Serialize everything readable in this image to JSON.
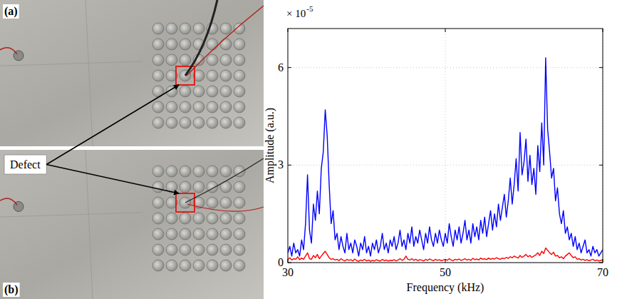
{
  "figure_panels": {
    "labels": [
      "(a)",
      "(b)"
    ],
    "callout": "Defect"
  },
  "chart_data": {
    "type": "line",
    "x_label": "Frequency (kHz)",
    "y_label": "Amplitude (a.u.)",
    "annotations": [
      "× 10",
      "-5"
    ],
    "x": [
      30,
      30.25,
      30.5,
      30.75,
      31,
      31.25,
      31.5,
      31.75,
      32,
      32.25,
      32.5,
      32.75,
      33,
      33.25,
      33.5,
      33.75,
      34,
      34.25,
      34.5,
      34.75,
      35,
      35.25,
      35.5,
      35.75,
      36,
      36.25,
      36.5,
      36.75,
      37,
      37.25,
      37.5,
      37.75,
      38,
      38.25,
      38.5,
      38.75,
      39,
      39.25,
      39.5,
      39.75,
      40,
      40.25,
      40.5,
      40.75,
      41,
      41.25,
      41.5,
      41.75,
      42,
      42.25,
      42.5,
      42.75,
      43,
      43.25,
      43.5,
      43.75,
      44,
      44.25,
      44.5,
      44.75,
      45,
      45.25,
      45.5,
      45.75,
      46,
      46.25,
      46.5,
      46.75,
      47,
      47.25,
      47.5,
      47.75,
      48,
      48.25,
      48.5,
      48.75,
      49,
      49.25,
      49.5,
      49.75,
      50,
      50.25,
      50.5,
      50.75,
      51,
      51.25,
      51.5,
      51.75,
      52,
      52.25,
      52.5,
      52.75,
      53,
      53.25,
      53.5,
      53.75,
      54,
      54.25,
      54.5,
      54.75,
      55,
      55.25,
      55.5,
      55.75,
      56,
      56.25,
      56.5,
      56.75,
      57,
      57.25,
      57.5,
      57.75,
      58,
      58.25,
      58.5,
      58.75,
      59,
      59.25,
      59.5,
      59.75,
      60,
      60.25,
      60.5,
      60.75,
      61,
      61.25,
      61.5,
      61.75,
      62,
      62.25,
      62.5,
      62.75,
      63,
      63.25,
      63.5,
      63.75,
      64,
      64.25,
      64.5,
      64.75,
      65,
      65.25,
      65.5,
      65.75,
      66,
      66.25,
      66.5,
      66.75,
      67,
      67.25,
      67.5,
      67.75,
      68,
      68.25,
      68.5,
      68.75,
      69,
      69.25,
      69.5,
      69.75,
      70
    ],
    "series": [
      {
        "color": "#0000ff",
        "values": [
          0.3,
          0.5,
          0.2,
          0.6,
          0.3,
          0.4,
          0.2,
          0.7,
          0.4,
          1.2,
          2.7,
          1.0,
          0.6,
          1.8,
          1.3,
          2.2,
          1.5,
          2.9,
          3.4,
          4.7,
          3.9,
          2.4,
          1.2,
          1.6,
          0.7,
          0.9,
          0.4,
          0.8,
          0.5,
          0.3,
          0.9,
          0.4,
          0.6,
          0.3,
          0.7,
          0.5,
          0.2,
          0.6,
          0.4,
          0.8,
          0.3,
          0.5,
          0.2,
          0.6,
          0.4,
          0.7,
          0.3,
          0.5,
          0.9,
          0.4,
          0.6,
          0.3,
          0.7,
          0.5,
          0.8,
          0.4,
          0.6,
          1.0,
          0.5,
          0.7,
          0.4,
          0.9,
          0.6,
          1.1,
          0.5,
          0.8,
          0.6,
          1.0,
          0.7,
          0.4,
          0.9,
          0.6,
          1.1,
          0.7,
          0.5,
          0.9,
          0.6,
          1.0,
          0.7,
          0.5,
          0.9,
          0.6,
          1.2,
          0.8,
          0.5,
          1.0,
          0.7,
          1.1,
          0.6,
          0.9,
          1.3,
          0.7,
          1.0,
          0.6,
          1.2,
          0.8,
          1.1,
          0.7,
          1.3,
          0.9,
          1.4,
          0.8,
          1.2,
          1.6,
          1.0,
          1.5,
          1.1,
          1.8,
          1.3,
          1.7,
          2.1,
          1.4,
          1.9,
          2.6,
          1.8,
          2.4,
          3.2,
          2.2,
          4.0,
          2.7,
          3.1,
          3.8,
          2.5,
          3.3,
          2.4,
          2.9,
          2.1,
          3.6,
          2.8,
          4.3,
          3.0,
          6.3,
          4.1,
          3.4,
          2.6,
          2.9,
          1.9,
          2.3,
          1.5,
          1.2,
          1.6,
          0.9,
          1.1,
          0.7,
          0.9,
          0.5,
          0.8,
          0.4,
          0.6,
          0.3,
          0.5,
          0.7,
          0.3,
          0.4,
          0.2,
          0.5,
          0.3,
          0.4,
          0.2,
          0.3,
          0.4
        ]
      },
      {
        "color": "#ff0000",
        "values": [
          0.1,
          0.15,
          0.08,
          0.12,
          0.1,
          0.18,
          0.09,
          0.14,
          0.1,
          0.2,
          0.3,
          0.12,
          0.1,
          0.22,
          0.15,
          0.25,
          0.12,
          0.2,
          0.28,
          0.35,
          0.25,
          0.15,
          0.1,
          0.12,
          0.08,
          0.1,
          0.06,
          0.12,
          0.08,
          0.05,
          0.1,
          0.07,
          0.09,
          0.05,
          0.11,
          0.06,
          0.04,
          0.08,
          0.06,
          0.1,
          0.05,
          0.08,
          0.04,
          0.07,
          0.05,
          0.09,
          0.06,
          0.05,
          0.1,
          0.06,
          0.08,
          0.05,
          0.07,
          0.06,
          0.09,
          0.05,
          0.08,
          0.12,
          0.07,
          0.1,
          0.2,
          0.1,
          0.08,
          0.12,
          0.07,
          0.1,
          0.06,
          0.09,
          0.08,
          0.05,
          0.1,
          0.07,
          0.11,
          0.08,
          0.06,
          0.1,
          0.07,
          0.09,
          0.06,
          0.08,
          0.1,
          0.07,
          0.12,
          0.08,
          0.06,
          0.1,
          0.08,
          0.11,
          0.07,
          0.09,
          0.12,
          0.08,
          0.1,
          0.07,
          0.13,
          0.09,
          0.11,
          0.08,
          0.14,
          0.1,
          0.12,
          0.09,
          0.14,
          0.1,
          0.13,
          0.11,
          0.15,
          0.12,
          0.1,
          0.14,
          0.12,
          0.16,
          0.13,
          0.18,
          0.15,
          0.2,
          0.17,
          0.14,
          0.22,
          0.16,
          0.2,
          0.25,
          0.18,
          0.22,
          0.16,
          0.2,
          0.24,
          0.3,
          0.22,
          0.35,
          0.28,
          0.45,
          0.38,
          0.3,
          0.25,
          0.32,
          0.2,
          0.22,
          0.15,
          0.18,
          0.12,
          0.2,
          0.25,
          0.3,
          0.22,
          0.15,
          0.18,
          0.1,
          0.12,
          0.08,
          0.1,
          0.07,
          0.09,
          0.06,
          0.08,
          0.1,
          0.06,
          0.08,
          0.05,
          0.07,
          0.08
        ]
      }
    ],
    "xlim": [
      30,
      70
    ],
    "xticks": [
      30,
      50,
      70
    ],
    "ylim": [
      0,
      7.2
    ],
    "yticks": [
      0,
      3,
      6
    ],
    "grid": true
  }
}
